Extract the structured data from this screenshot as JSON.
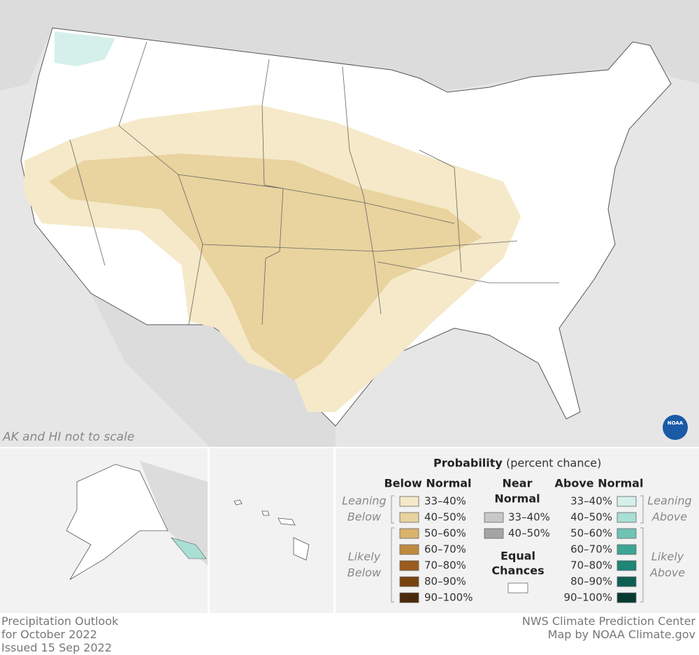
{
  "map": {
    "note": "AK and HI not to scale",
    "logo": "NOAA"
  },
  "legend": {
    "title": "Probability",
    "subtitle": "(percent chance)",
    "below": {
      "heading": "Below Normal",
      "leaning": [
        "Leaning",
        "Below"
      ],
      "likely": [
        "Likely",
        "Below"
      ],
      "items": [
        {
          "label": "33–40%",
          "color": "#f5e9c9"
        },
        {
          "label": "40–50%",
          "color": "#e9d39e"
        },
        {
          "label": "50–60%",
          "color": "#d9b36c"
        },
        {
          "label": "60–70%",
          "color": "#c08a3e"
        },
        {
          "label": "70–80%",
          "color": "#9a5b1e"
        },
        {
          "label": "80–90%",
          "color": "#7a4110"
        },
        {
          "label": "90–100%",
          "color": "#4a2a0a"
        }
      ]
    },
    "near": {
      "heading": [
        "Near",
        "Normal"
      ],
      "items": [
        {
          "label": "33–40%",
          "color": "#c8c8c8"
        },
        {
          "label": "40–50%",
          "color": "#a4a4a4"
        }
      ],
      "equal": [
        "Equal",
        "Chances"
      ],
      "equal_color": "#ffffff"
    },
    "above": {
      "heading": "Above Normal",
      "leaning": [
        "Leaning",
        "Above"
      ],
      "likely": [
        "Likely",
        "Above"
      ],
      "items": [
        {
          "label": "33–40%",
          "color": "#d5f0eb"
        },
        {
          "label": "40–50%",
          "color": "#a9dfd4"
        },
        {
          "label": "50–60%",
          "color": "#6fc4b4"
        },
        {
          "label": "60–70%",
          "color": "#3ea596"
        },
        {
          "label": "70–80%",
          "color": "#1e8577"
        },
        {
          "label": "80–90%",
          "color": "#0e5f52"
        },
        {
          "label": "90–100%",
          "color": "#053b33"
        }
      ]
    }
  },
  "footer": {
    "left": [
      "Precipitation Outlook",
      "for October 2022",
      "Issued 15 Sep 2022"
    ],
    "right": [
      "NWS Climate Prediction Center",
      "Map by NOAA Climate.gov"
    ]
  }
}
